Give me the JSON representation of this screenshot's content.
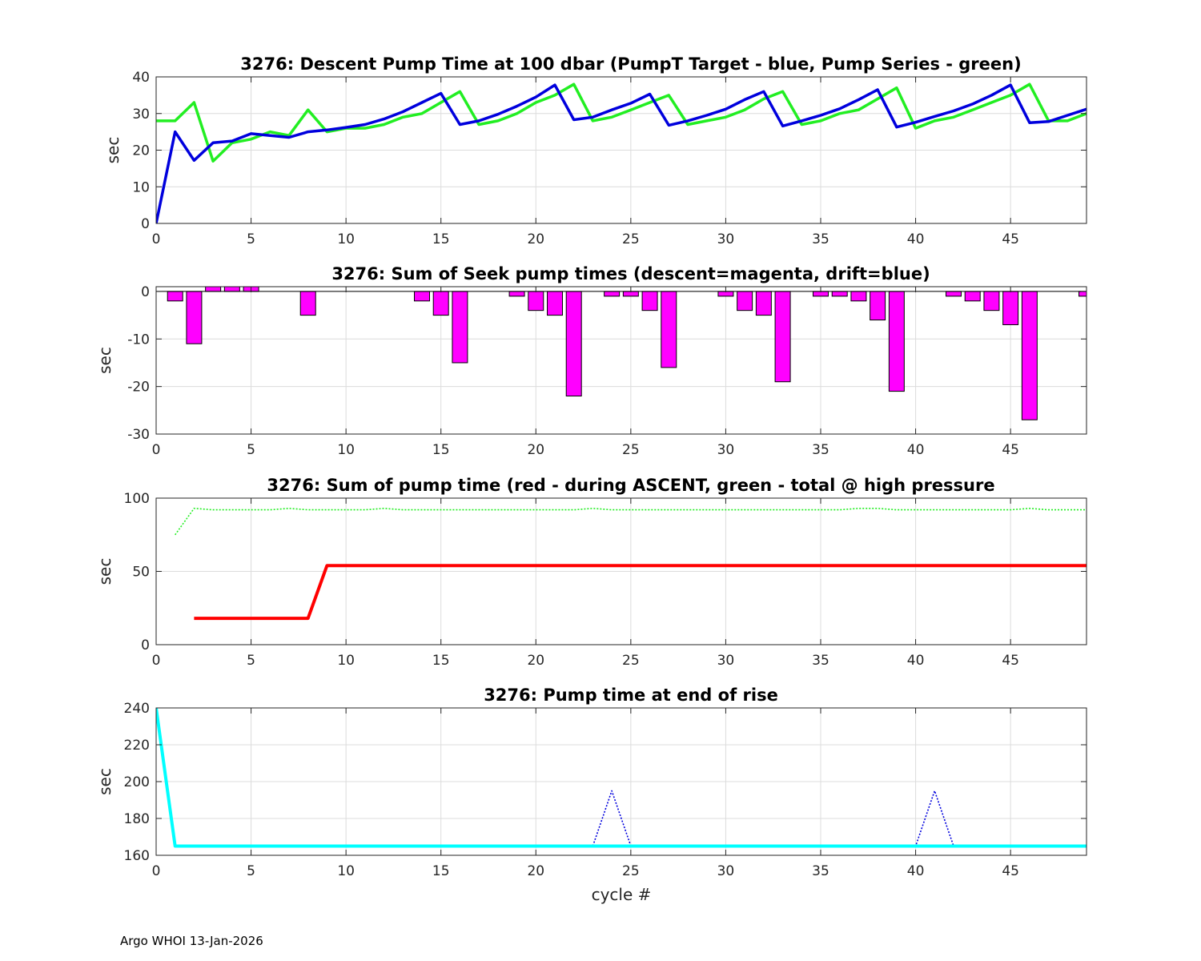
{
  "footer": "Argo WHOI 13-Jan-2026",
  "colors": {
    "blue": "#0000dd",
    "green": "#22ee22",
    "magenta": "#ff00ff",
    "red": "#ff0000",
    "cyan": "#00ffff"
  },
  "chart_data": [
    {
      "type": "line",
      "title": "3276: Descent Pump Time at 100 dbar (PumpT Target - blue, Pump Series - green)",
      "ylabel": "sec",
      "xlabel": "",
      "xlim": [
        0,
        49
      ],
      "ylim": [
        0,
        40
      ],
      "xticks": [
        0,
        5,
        10,
        15,
        20,
        25,
        30,
        35,
        40,
        45
      ],
      "yticks": [
        0,
        10,
        20,
        30,
        40
      ],
      "grid": true,
      "series": [
        {
          "color": "#22ee22",
          "style": "solid",
          "x": [
            0,
            1,
            2,
            3,
            4,
            5,
            6,
            7,
            8,
            9,
            10,
            11,
            12,
            13,
            14,
            15,
            16,
            17,
            18,
            19,
            20,
            21,
            22,
            23,
            24,
            25,
            26,
            27,
            28,
            29,
            30,
            31,
            32,
            33,
            34,
            35,
            36,
            37,
            38,
            39,
            40,
            41,
            42,
            43,
            44,
            45,
            46,
            47,
            48,
            49
          ],
          "values": [
            28,
            28,
            33,
            17,
            22,
            23,
            25,
            24,
            31,
            25,
            26,
            26,
            27,
            29,
            30,
            33,
            36,
            27,
            28,
            30,
            33,
            35,
            38,
            28,
            29,
            31,
            33,
            35,
            27,
            28,
            29,
            31,
            34,
            36,
            27,
            28,
            30,
            31,
            34,
            37,
            26,
            28,
            29,
            31,
            33,
            35,
            38,
            28,
            28,
            30
          ]
        },
        {
          "color": "#0000dd",
          "style": "solid",
          "x": [
            0,
            1,
            2,
            3,
            4,
            5,
            6,
            7,
            8,
            9,
            10,
            11,
            12,
            13,
            14,
            15,
            16,
            17,
            18,
            19,
            20,
            21,
            22,
            23,
            24,
            25,
            26,
            27,
            28,
            29,
            30,
            31,
            32,
            33,
            34,
            35,
            36,
            37,
            38,
            39,
            40,
            41,
            42,
            43,
            44,
            45,
            46,
            47,
            48,
            49
          ],
          "values": [
            0,
            25,
            17.2,
            22,
            22.5,
            24.5,
            24,
            23.5,
            25,
            25.5,
            26.2,
            27,
            28.5,
            30.5,
            33,
            35.5,
            27,
            28,
            29.8,
            32,
            34.5,
            37.8,
            28.3,
            29,
            31,
            32.8,
            35.3,
            26.8,
            28,
            29.5,
            31.2,
            33.8,
            36,
            26.6,
            28,
            29.5,
            31.3,
            33.8,
            36.5,
            26.3,
            27.6,
            29.2,
            30.7,
            32.6,
            35,
            37.8,
            27.5,
            27.8,
            29.5,
            31.2
          ]
        }
      ]
    },
    {
      "type": "bar",
      "title": "3276: Sum of Seek pump times (descent=magenta, drift=blue)",
      "ylabel": "sec",
      "xlabel": "",
      "xlim": [
        0,
        49
      ],
      "ylim": [
        -30,
        1
      ],
      "xticks": [
        0,
        5,
        10,
        15,
        20,
        25,
        30,
        35,
        40,
        45
      ],
      "yticks": [
        0,
        -10,
        -20,
        -30
      ],
      "grid": true,
      "series": [
        {
          "color": "#ff00ff",
          "x": [
            1,
            2,
            3,
            4,
            5,
            8,
            14,
            15,
            16,
            19,
            20,
            21,
            22,
            24,
            25,
            26,
            27,
            30,
            31,
            32,
            33,
            35,
            36,
            37,
            38,
            39,
            42,
            43,
            44,
            45,
            46,
            49
          ],
          "values": [
            -2,
            -11,
            1,
            1,
            1,
            -5,
            -2,
            -5,
            -15,
            -1,
            -4,
            -5,
            -22,
            -1,
            -1,
            -4,
            -16,
            -1,
            -4,
            -5,
            -19,
            -1,
            -1,
            -2,
            -6,
            -21,
            -1,
            -2,
            -4,
            -7,
            -27,
            -1
          ]
        }
      ]
    },
    {
      "type": "line",
      "title": "3276: Sum of pump time (red - during ASCENT, green - total @ high pressure",
      "ylabel": "sec",
      "xlabel": "",
      "xlim": [
        0,
        49
      ],
      "ylim": [
        0,
        100
      ],
      "xticks": [
        0,
        5,
        10,
        15,
        20,
        25,
        30,
        35,
        40,
        45
      ],
      "yticks": [
        0,
        50,
        100
      ],
      "grid": true,
      "series": [
        {
          "color": "#22ee22",
          "style": "dotted",
          "x": [
            1,
            2,
            3,
            4,
            5,
            6,
            7,
            8,
            9,
            10,
            11,
            12,
            13,
            14,
            15,
            16,
            17,
            18,
            19,
            20,
            21,
            22,
            23,
            24,
            25,
            26,
            27,
            28,
            29,
            30,
            31,
            32,
            33,
            34,
            35,
            36,
            37,
            38,
            39,
            40,
            41,
            42,
            43,
            44,
            45,
            46,
            47,
            48,
            49
          ],
          "values": [
            75,
            93,
            92,
            92,
            92,
            92,
            93,
            92,
            92,
            92,
            92,
            93,
            92,
            92,
            92,
            92,
            92,
            92,
            92,
            92,
            92,
            92,
            93,
            92,
            92,
            92,
            92,
            92,
            92,
            92,
            92,
            92,
            92,
            92,
            92,
            92,
            93,
            93,
            92,
            92,
            92,
            92,
            92,
            92,
            92,
            93,
            92,
            92,
            92
          ]
        },
        {
          "color": "#ff0000",
          "style": "solid",
          "x": [
            2,
            3,
            4,
            5,
            6,
            7,
            8,
            9,
            10,
            15,
            20,
            25,
            30,
            35,
            40,
            45,
            49
          ],
          "values": [
            18,
            18,
            18,
            18,
            18,
            18,
            18,
            54,
            54,
            54,
            54,
            54,
            54,
            54,
            54,
            54,
            54
          ]
        }
      ]
    },
    {
      "type": "line",
      "title": "3276: Pump time at end of rise",
      "ylabel": "sec",
      "xlabel": "cycle #",
      "xlim": [
        0,
        49
      ],
      "ylim": [
        160,
        240
      ],
      "xticks": [
        0,
        5,
        10,
        15,
        20,
        25,
        30,
        35,
        40,
        45
      ],
      "yticks": [
        160,
        180,
        200,
        220,
        240
      ],
      "grid": true,
      "series": [
        {
          "color": "#0000dd",
          "style": "dotted",
          "x": [
            0,
            1,
            23,
            24,
            25,
            40,
            41,
            42,
            49
          ],
          "values": [
            240,
            165,
            165,
            195,
            165,
            165,
            195,
            165,
            165
          ]
        },
        {
          "color": "#00ffff",
          "style": "solid",
          "x": [
            0,
            1,
            49
          ],
          "values": [
            240,
            165,
            165
          ]
        }
      ]
    }
  ]
}
